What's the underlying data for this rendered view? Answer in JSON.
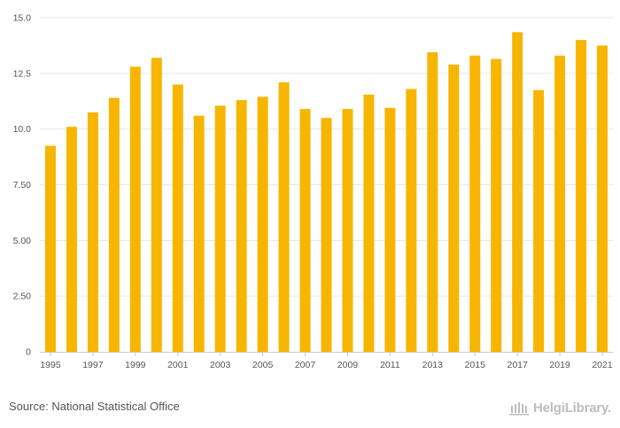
{
  "chart_data": {
    "type": "bar",
    "title": "",
    "xlabel": "",
    "ylabel": "",
    "ylim": [
      0,
      15
    ],
    "yticks": [
      "0",
      "2.50",
      "5.00",
      "7.50",
      "10.0",
      "12.5",
      "15.0"
    ],
    "ytick_values": [
      0,
      2.5,
      5,
      7.5,
      10,
      12.5,
      15
    ],
    "grid": true,
    "bar_color": "#F7B500",
    "categories": [
      "1995",
      "1996",
      "1997",
      "1998",
      "1999",
      "2000",
      "2001",
      "2002",
      "2003",
      "2004",
      "2005",
      "2006",
      "2007",
      "2008",
      "2009",
      "2010",
      "2011",
      "2012",
      "2013",
      "2014",
      "2015",
      "2016",
      "2017",
      "2018",
      "2019",
      "2020",
      "2021"
    ],
    "xtick_labels": [
      "1995",
      "1997",
      "1999",
      "2001",
      "2003",
      "2005",
      "2007",
      "2009",
      "2011",
      "2013",
      "2015",
      "2017",
      "2019",
      "2021"
    ],
    "values": [
      9.25,
      10.1,
      10.75,
      11.4,
      12.8,
      13.2,
      12.0,
      10.6,
      11.05,
      11.3,
      11.45,
      12.1,
      10.9,
      10.5,
      10.9,
      11.55,
      10.95,
      11.8,
      13.45,
      12.9,
      13.3,
      13.15,
      14.35,
      11.75,
      13.3,
      14.0,
      13.75
    ]
  },
  "footer": {
    "source": "Source: National Statistical Office",
    "logo_text": "HelgiLibrary."
  }
}
